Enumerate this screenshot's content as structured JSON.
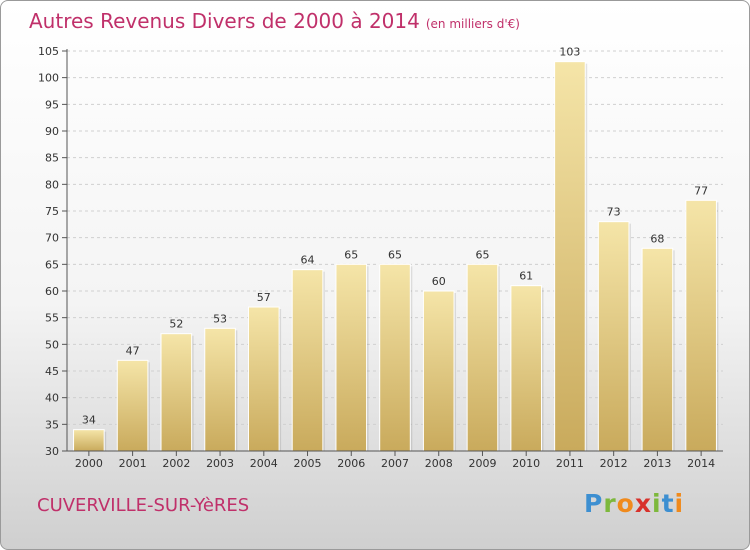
{
  "chart_data": {
    "type": "bar",
    "title": "Autres Revenus Divers de 2000 à 2014",
    "subtitle": "(en milliers d'€)",
    "categories": [
      "2000",
      "2001",
      "2002",
      "2003",
      "2004",
      "2005",
      "2006",
      "2007",
      "2008",
      "2009",
      "2010",
      "2011",
      "2012",
      "2013",
      "2014"
    ],
    "values": [
      34,
      47,
      52,
      53,
      57,
      64,
      65,
      65,
      60,
      65,
      61,
      103,
      73,
      68,
      77
    ],
    "ylim": [
      30,
      105
    ],
    "yticks": [
      30,
      35,
      40,
      45,
      50,
      55,
      60,
      65,
      70,
      75,
      80,
      85,
      90,
      95,
      100,
      105
    ],
    "grid": true,
    "xlabel": "",
    "ylabel": "",
    "colors": {
      "bar": "#e2c67e",
      "bar_light": "#f3e1a2",
      "bar_dark": "#c9a85a",
      "title": "#c0306a"
    }
  },
  "footer": {
    "place": "CUVERVILLE-SUR-YèRES"
  },
  "logo": {
    "text": "Proxiti"
  }
}
